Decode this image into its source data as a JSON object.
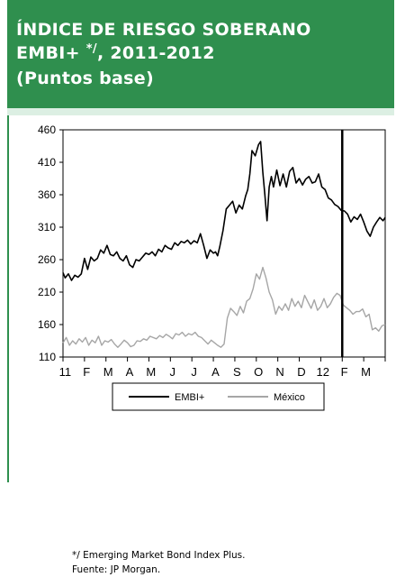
{
  "header": {
    "line1": "ÍNDICE DE RIESGO SOBERANO",
    "line2_prefix": "EMBI+",
    "line2_mark": "*/",
    "line2_suffix": ", 2011-2012",
    "line3": "(Puntos base)"
  },
  "footnotes": {
    "note1": "*/ Emerging Market Bond Index Plus.",
    "note2": "Fuente:  JP Morgan."
  },
  "colors": {
    "header_bg": "#2f8f4e",
    "panel_bg": "#dcefe3",
    "embi": "#000000",
    "mexico": "#a6a6a6"
  },
  "chart_data": {
    "type": "line",
    "title": "",
    "ylim": [
      110,
      460
    ],
    "yticks": [
      110,
      160,
      210,
      260,
      310,
      360,
      410,
      460
    ],
    "x_tick_labels": [
      "11",
      "F",
      "M",
      "A",
      "M",
      "J",
      "J",
      "A",
      "S",
      "O",
      "N",
      "D",
      "12",
      "F",
      "M"
    ],
    "x_domain": [
      0,
      15
    ],
    "grid": false,
    "legend": "bottom",
    "vertical_marker_month": 13,
    "series": [
      {
        "name": "EMBI+",
        "color": "#000000",
        "x": [
          0,
          0.1,
          0.25,
          0.4,
          0.55,
          0.7,
          0.85,
          1.0,
          1.15,
          1.3,
          1.45,
          1.6,
          1.75,
          1.9,
          2.05,
          2.2,
          2.35,
          2.5,
          2.65,
          2.8,
          2.95,
          3.1,
          3.25,
          3.4,
          3.55,
          3.7,
          3.85,
          4.0,
          4.15,
          4.3,
          4.45,
          4.6,
          4.75,
          4.9,
          5.05,
          5.2,
          5.35,
          5.5,
          5.65,
          5.8,
          5.95,
          6.1,
          6.25,
          6.4,
          6.55,
          6.7,
          6.85,
          7.0,
          7.1,
          7.2,
          7.3,
          7.45,
          7.6,
          7.75,
          7.9,
          8.05,
          8.2,
          8.35,
          8.5,
          8.6,
          8.7,
          8.8,
          8.95,
          9.1,
          9.2,
          9.3,
          9.4,
          9.5,
          9.6,
          9.7,
          9.8,
          9.95,
          10.1,
          10.25,
          10.4,
          10.55,
          10.7,
          10.85,
          11.0,
          11.15,
          11.3,
          11.45,
          11.6,
          11.75,
          11.9,
          12.05,
          12.2,
          12.35,
          12.5,
          12.65,
          12.8,
          12.95,
          13.1,
          13.25,
          13.4,
          13.55,
          13.7,
          13.85,
          14.0,
          14.15,
          14.3,
          14.45,
          14.6,
          14.75,
          14.9,
          15.0
        ],
        "y": [
          240,
          232,
          238,
          228,
          236,
          233,
          238,
          262,
          245,
          264,
          258,
          262,
          275,
          270,
          282,
          268,
          266,
          272,
          262,
          258,
          266,
          252,
          248,
          260,
          258,
          264,
          270,
          268,
          272,
          266,
          276,
          272,
          282,
          278,
          276,
          286,
          282,
          288,
          286,
          290,
          284,
          289,
          286,
          300,
          282,
          262,
          275,
          270,
          272,
          266,
          280,
          305,
          338,
          344,
          350,
          332,
          344,
          338,
          358,
          368,
          392,
          428,
          420,
          437,
          442,
          395,
          360,
          320,
          372,
          388,
          372,
          398,
          374,
          392,
          372,
          396,
          402,
          378,
          385,
          375,
          384,
          388,
          378,
          380,
          392,
          372,
          368,
          355,
          352,
          345,
          342,
          336,
          335,
          330,
          318,
          326,
          322,
          330,
          318,
          304,
          296,
          310,
          318,
          325,
          320,
          325
        ]
      },
      {
        "name": "México",
        "color": "#a6a6a6",
        "x": [
          0,
          0.15,
          0.3,
          0.45,
          0.6,
          0.75,
          0.9,
          1.05,
          1.2,
          1.35,
          1.5,
          1.65,
          1.8,
          1.95,
          2.1,
          2.25,
          2.4,
          2.55,
          2.7,
          2.85,
          3.0,
          3.15,
          3.3,
          3.45,
          3.6,
          3.75,
          3.9,
          4.05,
          4.2,
          4.35,
          4.5,
          4.65,
          4.8,
          4.95,
          5.1,
          5.25,
          5.4,
          5.55,
          5.7,
          5.85,
          6.0,
          6.15,
          6.3,
          6.45,
          6.6,
          6.75,
          6.9,
          7.05,
          7.2,
          7.35,
          7.5,
          7.65,
          7.8,
          7.95,
          8.1,
          8.25,
          8.4,
          8.55,
          8.7,
          8.85,
          9.0,
          9.15,
          9.3,
          9.45,
          9.6,
          9.75,
          9.9,
          10.05,
          10.2,
          10.35,
          10.5,
          10.65,
          10.8,
          10.95,
          11.1,
          11.25,
          11.4,
          11.55,
          11.7,
          11.85,
          12.0,
          12.15,
          12.3,
          12.45,
          12.6,
          12.75,
          12.9,
          13.05,
          13.2,
          13.35,
          13.5,
          13.65,
          13.8,
          13.95,
          14.1,
          14.25,
          14.4,
          14.55,
          14.7,
          14.85,
          15.0
        ],
        "y": [
          132,
          140,
          128,
          135,
          130,
          138,
          133,
          140,
          128,
          136,
          132,
          142,
          128,
          135,
          133,
          137,
          130,
          125,
          130,
          136,
          132,
          126,
          128,
          135,
          134,
          138,
          136,
          142,
          140,
          138,
          143,
          140,
          145,
          142,
          138,
          146,
          144,
          148,
          142,
          146,
          144,
          148,
          142,
          140,
          135,
          130,
          136,
          132,
          128,
          125,
          130,
          170,
          185,
          180,
          174,
          188,
          178,
          196,
          200,
          215,
          238,
          230,
          248,
          232,
          210,
          198,
          176,
          188,
          182,
          192,
          182,
          200,
          188,
          196,
          186,
          205,
          195,
          185,
          198,
          182,
          188,
          200,
          186,
          192,
          202,
          208,
          205,
          190,
          186,
          182,
          176,
          180,
          180,
          184,
          172,
          176,
          152,
          155,
          150,
          158,
          160
        ]
      }
    ]
  }
}
